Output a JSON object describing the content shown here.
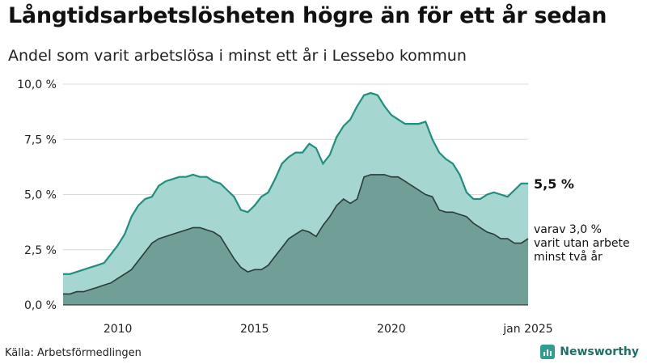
{
  "title": "Långtidsarbetslösheten högre än för ett år sedan",
  "subtitle": "Andel som varit arbetslösa i minst ett år i Lessebo kommun",
  "source": "Källa: Arbetsförmedlingen",
  "brand": "Newsworthy",
  "colors": {
    "total_fill": "#a5d6cf",
    "total_line": "#1f8f7e",
    "long_fill": "#6f9f97",
    "long_line": "#2b3b38",
    "grid": "#d9d9d9"
  },
  "chart_data": {
    "type": "area",
    "x_start": "2008-01",
    "x_end": "2025-01",
    "ylim": [
      0,
      10
    ],
    "yticks": [
      "0,0 %",
      "2,5 %",
      "5,0 %",
      "7,5 %",
      "10,0 %"
    ],
    "xticks": [
      "2010",
      "2015",
      "2020",
      "jan 2025"
    ],
    "end_label": "5,5 %",
    "annotation": [
      "varav 3,0 %",
      "varit utan arbete",
      "minst två år"
    ],
    "series": [
      {
        "values": [
          [
            "2008-01",
            1.4
          ],
          [
            "2008-04",
            1.4
          ],
          [
            "2008-07",
            1.5
          ],
          [
            "2008-10",
            1.6
          ],
          [
            "2009-01",
            1.7
          ],
          [
            "2009-04",
            1.8
          ],
          [
            "2009-07",
            1.9
          ],
          [
            "2009-10",
            2.3
          ],
          [
            "2010-01",
            2.7
          ],
          [
            "2010-04",
            3.2
          ],
          [
            "2010-07",
            4.0
          ],
          [
            "2010-10",
            4.5
          ],
          [
            "2011-01",
            4.8
          ],
          [
            "2011-04",
            4.9
          ],
          [
            "2011-07",
            5.4
          ],
          [
            "2011-10",
            5.6
          ],
          [
            "2012-01",
            5.7
          ],
          [
            "2012-04",
            5.8
          ],
          [
            "2012-07",
            5.8
          ],
          [
            "2012-10",
            5.9
          ],
          [
            "2013-01",
            5.8
          ],
          [
            "2013-04",
            5.8
          ],
          [
            "2013-07",
            5.6
          ],
          [
            "2013-10",
            5.5
          ],
          [
            "2014-01",
            5.2
          ],
          [
            "2014-04",
            4.9
          ],
          [
            "2014-07",
            4.3
          ],
          [
            "2014-10",
            4.2
          ],
          [
            "2015-01",
            4.5
          ],
          [
            "2015-04",
            4.9
          ],
          [
            "2015-07",
            5.1
          ],
          [
            "2015-10",
            5.7
          ],
          [
            "2016-01",
            6.4
          ],
          [
            "2016-04",
            6.7
          ],
          [
            "2016-07",
            6.9
          ],
          [
            "2016-10",
            6.9
          ],
          [
            "2017-01",
            7.3
          ],
          [
            "2017-04",
            7.1
          ],
          [
            "2017-07",
            6.4
          ],
          [
            "2017-10",
            6.8
          ],
          [
            "2018-01",
            7.6
          ],
          [
            "2018-04",
            8.1
          ],
          [
            "2018-07",
            8.4
          ],
          [
            "2018-10",
            9.0
          ],
          [
            "2019-01",
            9.5
          ],
          [
            "2019-04",
            9.6
          ],
          [
            "2019-07",
            9.5
          ],
          [
            "2019-10",
            9.0
          ],
          [
            "2020-01",
            8.6
          ],
          [
            "2020-04",
            8.4
          ],
          [
            "2020-07",
            8.2
          ],
          [
            "2020-10",
            8.2
          ],
          [
            "2021-01",
            8.2
          ],
          [
            "2021-04",
            8.3
          ],
          [
            "2021-07",
            7.5
          ],
          [
            "2021-10",
            6.9
          ],
          [
            "2022-01",
            6.6
          ],
          [
            "2022-04",
            6.4
          ],
          [
            "2022-07",
            5.9
          ],
          [
            "2022-10",
            5.1
          ],
          [
            "2023-01",
            4.8
          ],
          [
            "2023-04",
            4.8
          ],
          [
            "2023-07",
            5.0
          ],
          [
            "2023-10",
            5.1
          ],
          [
            "2024-01",
            5.0
          ],
          [
            "2024-04",
            4.9
          ],
          [
            "2024-07",
            5.2
          ],
          [
            "2024-10",
            5.5
          ],
          [
            "2025-01",
            5.5
          ]
        ]
      },
      {
        "values": [
          [
            "2008-01",
            0.5
          ],
          [
            "2008-04",
            0.5
          ],
          [
            "2008-07",
            0.6
          ],
          [
            "2008-10",
            0.6
          ],
          [
            "2009-01",
            0.7
          ],
          [
            "2009-04",
            0.8
          ],
          [
            "2009-07",
            0.9
          ],
          [
            "2009-10",
            1.0
          ],
          [
            "2010-01",
            1.2
          ],
          [
            "2010-04",
            1.4
          ],
          [
            "2010-07",
            1.6
          ],
          [
            "2010-10",
            2.0
          ],
          [
            "2011-01",
            2.4
          ],
          [
            "2011-04",
            2.8
          ],
          [
            "2011-07",
            3.0
          ],
          [
            "2011-10",
            3.1
          ],
          [
            "2012-01",
            3.2
          ],
          [
            "2012-04",
            3.3
          ],
          [
            "2012-07",
            3.4
          ],
          [
            "2012-10",
            3.5
          ],
          [
            "2013-01",
            3.5
          ],
          [
            "2013-04",
            3.4
          ],
          [
            "2013-07",
            3.3
          ],
          [
            "2013-10",
            3.1
          ],
          [
            "2014-01",
            2.6
          ],
          [
            "2014-04",
            2.1
          ],
          [
            "2014-07",
            1.7
          ],
          [
            "2014-10",
            1.5
          ],
          [
            "2015-01",
            1.6
          ],
          [
            "2015-04",
            1.6
          ],
          [
            "2015-07",
            1.8
          ],
          [
            "2015-10",
            2.2
          ],
          [
            "2016-01",
            2.6
          ],
          [
            "2016-04",
            3.0
          ],
          [
            "2016-07",
            3.2
          ],
          [
            "2016-10",
            3.4
          ],
          [
            "2017-01",
            3.3
          ],
          [
            "2017-04",
            3.1
          ],
          [
            "2017-07",
            3.6
          ],
          [
            "2017-10",
            4.0
          ],
          [
            "2018-01",
            4.5
          ],
          [
            "2018-04",
            4.8
          ],
          [
            "2018-07",
            4.6
          ],
          [
            "2018-10",
            4.8
          ],
          [
            "2019-01",
            5.8
          ],
          [
            "2019-04",
            5.9
          ],
          [
            "2019-07",
            5.9
          ],
          [
            "2019-10",
            5.9
          ],
          [
            "2020-01",
            5.8
          ],
          [
            "2020-04",
            5.8
          ],
          [
            "2020-07",
            5.6
          ],
          [
            "2020-10",
            5.4
          ],
          [
            "2021-01",
            5.2
          ],
          [
            "2021-04",
            5.0
          ],
          [
            "2021-07",
            4.9
          ],
          [
            "2021-10",
            4.3
          ],
          [
            "2022-01",
            4.2
          ],
          [
            "2022-04",
            4.2
          ],
          [
            "2022-07",
            4.1
          ],
          [
            "2022-10",
            4.0
          ],
          [
            "2023-01",
            3.7
          ],
          [
            "2023-04",
            3.5
          ],
          [
            "2023-07",
            3.3
          ],
          [
            "2023-10",
            3.2
          ],
          [
            "2024-01",
            3.0
          ],
          [
            "2024-04",
            3.0
          ],
          [
            "2024-07",
            2.8
          ],
          [
            "2024-10",
            2.8
          ],
          [
            "2025-01",
            3.0
          ]
        ]
      }
    ]
  }
}
